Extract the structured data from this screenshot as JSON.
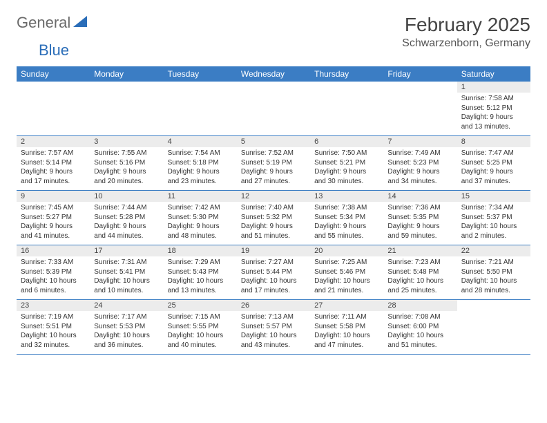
{
  "brand": {
    "part1": "General",
    "part2": "Blue"
  },
  "title": "February 2025",
  "location": "Schwarzenborn, Germany",
  "day_headers": [
    "Sunday",
    "Monday",
    "Tuesday",
    "Wednesday",
    "Thursday",
    "Friday",
    "Saturday"
  ],
  "colors": {
    "header_bg": "#3b7dc4",
    "header_text": "#ffffff",
    "daynum_bg": "#ececec",
    "rule": "#3b7dc4",
    "logo_gray": "#6a6a6a",
    "logo_blue": "#2a6db8"
  },
  "weeks": [
    [
      {
        "n": "",
        "sunrise": "",
        "sunset": "",
        "daylight": ""
      },
      {
        "n": "",
        "sunrise": "",
        "sunset": "",
        "daylight": ""
      },
      {
        "n": "",
        "sunrise": "",
        "sunset": "",
        "daylight": ""
      },
      {
        "n": "",
        "sunrise": "",
        "sunset": "",
        "daylight": ""
      },
      {
        "n": "",
        "sunrise": "",
        "sunset": "",
        "daylight": ""
      },
      {
        "n": "",
        "sunrise": "",
        "sunset": "",
        "daylight": ""
      },
      {
        "n": "1",
        "sunrise": "Sunrise: 7:58 AM",
        "sunset": "Sunset: 5:12 PM",
        "daylight": "Daylight: 9 hours and 13 minutes."
      }
    ],
    [
      {
        "n": "2",
        "sunrise": "Sunrise: 7:57 AM",
        "sunset": "Sunset: 5:14 PM",
        "daylight": "Daylight: 9 hours and 17 minutes."
      },
      {
        "n": "3",
        "sunrise": "Sunrise: 7:55 AM",
        "sunset": "Sunset: 5:16 PM",
        "daylight": "Daylight: 9 hours and 20 minutes."
      },
      {
        "n": "4",
        "sunrise": "Sunrise: 7:54 AM",
        "sunset": "Sunset: 5:18 PM",
        "daylight": "Daylight: 9 hours and 23 minutes."
      },
      {
        "n": "5",
        "sunrise": "Sunrise: 7:52 AM",
        "sunset": "Sunset: 5:19 PM",
        "daylight": "Daylight: 9 hours and 27 minutes."
      },
      {
        "n": "6",
        "sunrise": "Sunrise: 7:50 AM",
        "sunset": "Sunset: 5:21 PM",
        "daylight": "Daylight: 9 hours and 30 minutes."
      },
      {
        "n": "7",
        "sunrise": "Sunrise: 7:49 AM",
        "sunset": "Sunset: 5:23 PM",
        "daylight": "Daylight: 9 hours and 34 minutes."
      },
      {
        "n": "8",
        "sunrise": "Sunrise: 7:47 AM",
        "sunset": "Sunset: 5:25 PM",
        "daylight": "Daylight: 9 hours and 37 minutes."
      }
    ],
    [
      {
        "n": "9",
        "sunrise": "Sunrise: 7:45 AM",
        "sunset": "Sunset: 5:27 PM",
        "daylight": "Daylight: 9 hours and 41 minutes."
      },
      {
        "n": "10",
        "sunrise": "Sunrise: 7:44 AM",
        "sunset": "Sunset: 5:28 PM",
        "daylight": "Daylight: 9 hours and 44 minutes."
      },
      {
        "n": "11",
        "sunrise": "Sunrise: 7:42 AM",
        "sunset": "Sunset: 5:30 PM",
        "daylight": "Daylight: 9 hours and 48 minutes."
      },
      {
        "n": "12",
        "sunrise": "Sunrise: 7:40 AM",
        "sunset": "Sunset: 5:32 PM",
        "daylight": "Daylight: 9 hours and 51 minutes."
      },
      {
        "n": "13",
        "sunrise": "Sunrise: 7:38 AM",
        "sunset": "Sunset: 5:34 PM",
        "daylight": "Daylight: 9 hours and 55 minutes."
      },
      {
        "n": "14",
        "sunrise": "Sunrise: 7:36 AM",
        "sunset": "Sunset: 5:35 PM",
        "daylight": "Daylight: 9 hours and 59 minutes."
      },
      {
        "n": "15",
        "sunrise": "Sunrise: 7:34 AM",
        "sunset": "Sunset: 5:37 PM",
        "daylight": "Daylight: 10 hours and 2 minutes."
      }
    ],
    [
      {
        "n": "16",
        "sunrise": "Sunrise: 7:33 AM",
        "sunset": "Sunset: 5:39 PM",
        "daylight": "Daylight: 10 hours and 6 minutes."
      },
      {
        "n": "17",
        "sunrise": "Sunrise: 7:31 AM",
        "sunset": "Sunset: 5:41 PM",
        "daylight": "Daylight: 10 hours and 10 minutes."
      },
      {
        "n": "18",
        "sunrise": "Sunrise: 7:29 AM",
        "sunset": "Sunset: 5:43 PM",
        "daylight": "Daylight: 10 hours and 13 minutes."
      },
      {
        "n": "19",
        "sunrise": "Sunrise: 7:27 AM",
        "sunset": "Sunset: 5:44 PM",
        "daylight": "Daylight: 10 hours and 17 minutes."
      },
      {
        "n": "20",
        "sunrise": "Sunrise: 7:25 AM",
        "sunset": "Sunset: 5:46 PM",
        "daylight": "Daylight: 10 hours and 21 minutes."
      },
      {
        "n": "21",
        "sunrise": "Sunrise: 7:23 AM",
        "sunset": "Sunset: 5:48 PM",
        "daylight": "Daylight: 10 hours and 25 minutes."
      },
      {
        "n": "22",
        "sunrise": "Sunrise: 7:21 AM",
        "sunset": "Sunset: 5:50 PM",
        "daylight": "Daylight: 10 hours and 28 minutes."
      }
    ],
    [
      {
        "n": "23",
        "sunrise": "Sunrise: 7:19 AM",
        "sunset": "Sunset: 5:51 PM",
        "daylight": "Daylight: 10 hours and 32 minutes."
      },
      {
        "n": "24",
        "sunrise": "Sunrise: 7:17 AM",
        "sunset": "Sunset: 5:53 PM",
        "daylight": "Daylight: 10 hours and 36 minutes."
      },
      {
        "n": "25",
        "sunrise": "Sunrise: 7:15 AM",
        "sunset": "Sunset: 5:55 PM",
        "daylight": "Daylight: 10 hours and 40 minutes."
      },
      {
        "n": "26",
        "sunrise": "Sunrise: 7:13 AM",
        "sunset": "Sunset: 5:57 PM",
        "daylight": "Daylight: 10 hours and 43 minutes."
      },
      {
        "n": "27",
        "sunrise": "Sunrise: 7:11 AM",
        "sunset": "Sunset: 5:58 PM",
        "daylight": "Daylight: 10 hours and 47 minutes."
      },
      {
        "n": "28",
        "sunrise": "Sunrise: 7:08 AM",
        "sunset": "Sunset: 6:00 PM",
        "daylight": "Daylight: 10 hours and 51 minutes."
      },
      {
        "n": "",
        "sunrise": "",
        "sunset": "",
        "daylight": ""
      }
    ]
  ]
}
